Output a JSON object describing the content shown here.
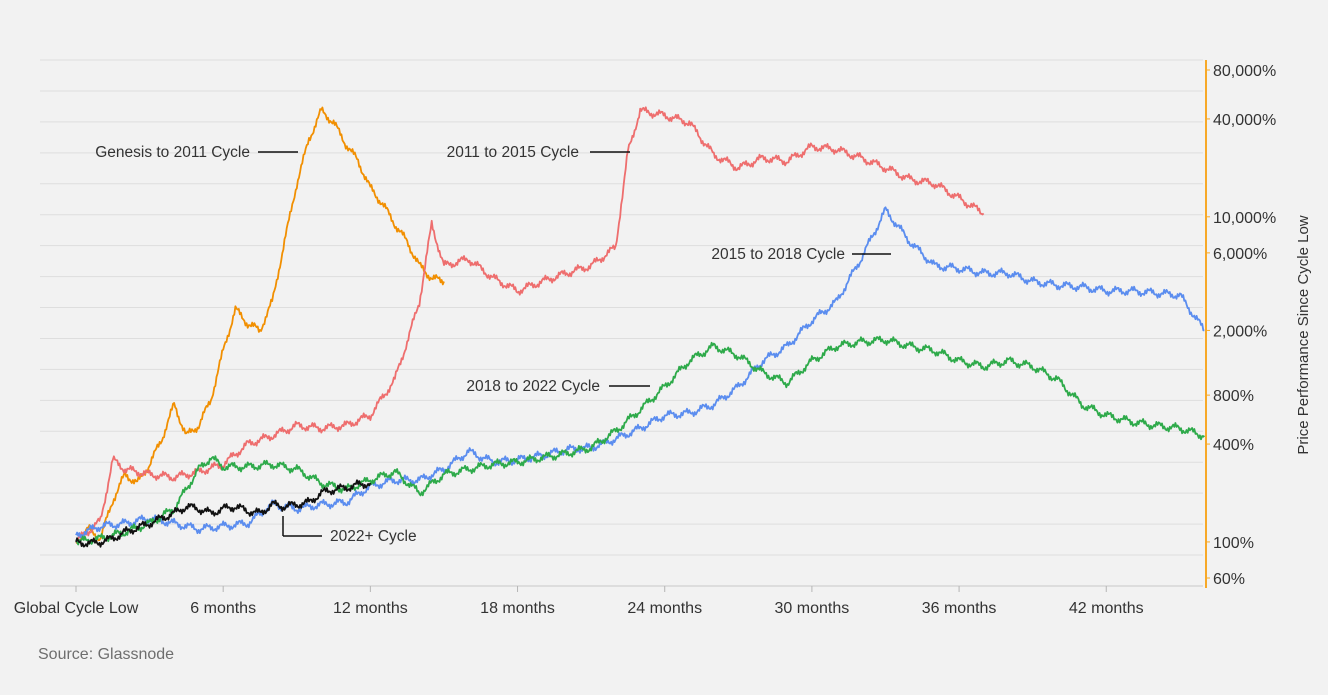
{
  "source": "Source: Glassnode",
  "chart_data": {
    "type": "line",
    "title": "",
    "xlabel": "",
    "ylabel": "Price Performance Since Cycle Low",
    "y_scale": "log",
    "ylim": [
      60,
      80000
    ],
    "xlim_months": [
      0,
      47
    ],
    "x_ticks": [
      {
        "month": 0,
        "label": "Global Cycle Low"
      },
      {
        "month": 6,
        "label": "6 months"
      },
      {
        "month": 12,
        "label": "12 months"
      },
      {
        "month": 18,
        "label": "18 months"
      },
      {
        "month": 24,
        "label": "24 months"
      },
      {
        "month": 30,
        "label": "30 months"
      },
      {
        "month": 36,
        "label": "36 months"
      },
      {
        "month": 42,
        "label": "42 months"
      }
    ],
    "y_ticks": [
      {
        "value": 60,
        "label": "60%"
      },
      {
        "value": 100,
        "label": "100%"
      },
      {
        "value": 400,
        "label": "400%"
      },
      {
        "value": 800,
        "label": "800%"
      },
      {
        "value": 2000,
        "label": "2,000%"
      },
      {
        "value": 6000,
        "label": "6,000%"
      },
      {
        "value": 10000,
        "label": "10,000%"
      },
      {
        "value": 40000,
        "label": "40,000%"
      },
      {
        "value": 80000,
        "label": "80,000%"
      }
    ],
    "grid": true,
    "legend": "inline annotations",
    "series": [
      {
        "name": "Genesis to 2011 Cycle",
        "color": "#f18f01",
        "x": [
          0,
          0.5,
          1,
          1.5,
          2,
          2.5,
          3,
          3.5,
          4,
          4.5,
          5,
          5.5,
          6,
          6.5,
          7,
          7.5,
          8,
          8.5,
          9,
          9.5,
          10,
          10.5,
          11,
          11.5,
          12,
          12.5,
          13,
          13.5,
          14,
          14.5,
          15
        ],
        "values": [
          100,
          120,
          105,
          180,
          260,
          230,
          300,
          430,
          700,
          450,
          520,
          750,
          1500,
          2700,
          2200,
          2000,
          3000,
          7000,
          16000,
          30000,
          45000,
          38000,
          28000,
          22000,
          15000,
          12000,
          9000,
          7000,
          5000,
          4200,
          4000
        ]
      },
      {
        "name": "2011 to 2015 Cycle",
        "color": "#ee6e6e",
        "x": [
          0,
          1,
          1.5,
          2,
          3,
          4,
          5,
          6,
          7,
          8,
          9,
          10,
          11,
          12,
          13,
          13.5,
          14,
          14.5,
          15,
          16,
          17,
          18,
          19,
          20,
          21,
          22,
          22.5,
          23,
          24,
          25,
          26,
          27,
          28,
          29,
          30,
          31,
          32,
          33,
          34,
          35,
          36,
          37
        ],
        "values": [
          100,
          135,
          320,
          280,
          260,
          250,
          270,
          300,
          400,
          450,
          520,
          500,
          520,
          600,
          1000,
          1700,
          3000,
          9000,
          5000,
          5500,
          4200,
          3500,
          4000,
          4500,
          5000,
          6500,
          25000,
          45000,
          42000,
          38000,
          24000,
          20000,
          23000,
          22000,
          27000,
          26000,
          23000,
          20000,
          17000,
          16000,
          13000,
          10500
        ]
      },
      {
        "name": "2015 to 2018 Cycle",
        "color": "#5b8def",
        "x": [
          0,
          1,
          2,
          3,
          4,
          5,
          6,
          7,
          8,
          9,
          10,
          11,
          12,
          13,
          14,
          15,
          16,
          17,
          18,
          19,
          20,
          21,
          22,
          23,
          24,
          25,
          26,
          27,
          28,
          29,
          30,
          31,
          32,
          33,
          34,
          35,
          36,
          37,
          38,
          39,
          40,
          41,
          42,
          43,
          44,
          45,
          46
        ],
        "values": [
          110,
          125,
          130,
          140,
          130,
          120,
          125,
          130,
          170,
          160,
          170,
          175,
          220,
          240,
          240,
          280,
          360,
          310,
          320,
          340,
          370,
          380,
          430,
          500,
          600,
          620,
          700,
          900,
          1300,
          1600,
          2300,
          3000,
          5500,
          11000,
          7000,
          5000,
          4800,
          4500,
          4500,
          4000,
          3800,
          3700,
          3500,
          3500,
          3400,
          3300,
          2000
        ]
      },
      {
        "name": "2018 to 2022 Cycle",
        "color": "#2eaa4a",
        "x": [
          0,
          1,
          2,
          3,
          4,
          5,
          5.5,
          6,
          7,
          8,
          9,
          10,
          11,
          12,
          13,
          14,
          15,
          16,
          17,
          18,
          19,
          20,
          21,
          22,
          23,
          24,
          25,
          26,
          27,
          28,
          29,
          30,
          31,
          32,
          33,
          34,
          35,
          36,
          37,
          38,
          39,
          40,
          41,
          42,
          43,
          44,
          45,
          46
        ],
        "values": [
          100,
          105,
          115,
          130,
          160,
          280,
          330,
          290,
          290,
          300,
          280,
          230,
          210,
          240,
          270,
          200,
          260,
          280,
          300,
          310,
          330,
          350,
          380,
          480,
          650,
          900,
          1300,
          1600,
          1400,
          1100,
          950,
          1300,
          1600,
          1700,
          1750,
          1600,
          1500,
          1300,
          1200,
          1300,
          1200,
          1000,
          700,
          600,
          550,
          520,
          500,
          450
        ]
      },
      {
        "name": "2022+ Cycle",
        "color": "#111111",
        "x": [
          0,
          0.5,
          1,
          1.5,
          2,
          2.5,
          3,
          3.5,
          4,
          4.5,
          5,
          5.5,
          6,
          6.5,
          7,
          7.5,
          8,
          8.5,
          9,
          9.5,
          10,
          10.5,
          11,
          11.5,
          12
        ],
        "values": [
          100,
          98,
          100,
          105,
          115,
          122,
          130,
          140,
          150,
          165,
          160,
          150,
          160,
          165,
          155,
          150,
          170,
          165,
          170,
          175,
          200,
          210,
          215,
          225,
          230
        ]
      }
    ]
  }
}
